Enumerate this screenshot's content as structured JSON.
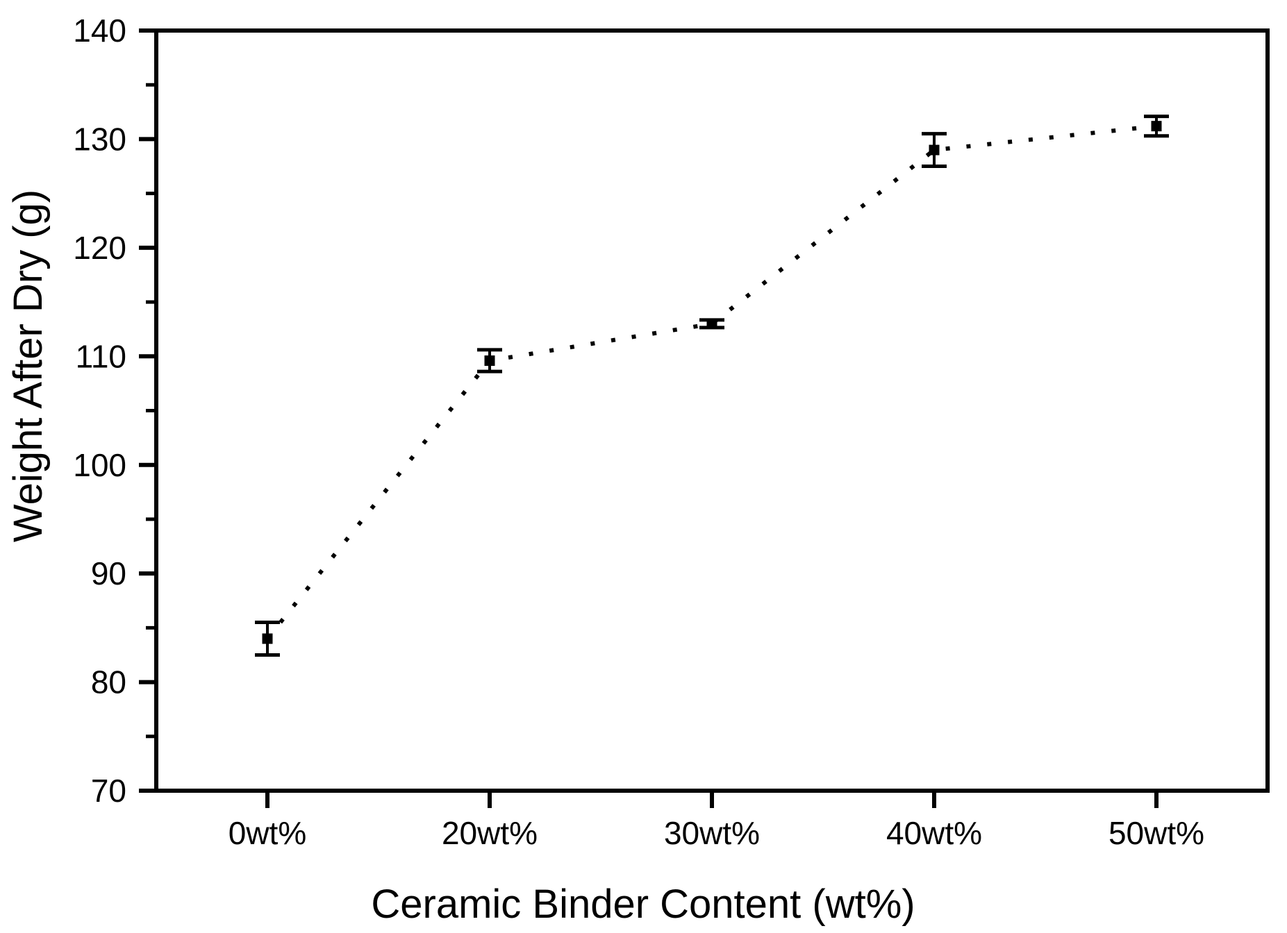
{
  "chart_data": {
    "type": "scatter",
    "title": "",
    "xlabel": "Ceramic Binder Content (wt%)",
    "ylabel": "Weight After Dry (g)",
    "categories": [
      "0wt%",
      "20wt%",
      "30wt%",
      "40wt%",
      "50wt%"
    ],
    "series": [
      {
        "name": "Weight After Dry",
        "values": [
          84.0,
          109.6,
          113.0,
          129.0,
          131.2
        ],
        "errors": [
          1.5,
          1.0,
          0.35,
          1.5,
          0.9
        ]
      }
    ],
    "ylim": [
      70,
      140
    ],
    "y_major_step": 10,
    "y_minor_step": 5,
    "y_tick_labels": [
      "70",
      "80",
      "90",
      "100",
      "110",
      "120",
      "130",
      "140"
    ],
    "grid": false,
    "legend": "none",
    "line_style": "dotted",
    "marker": "filled-square",
    "error_bars": "vertical-with-caps",
    "colors": {
      "line": "#000000",
      "marker": "#000000",
      "axis": "#000000",
      "text": "#000000",
      "background": "#ffffff"
    }
  }
}
